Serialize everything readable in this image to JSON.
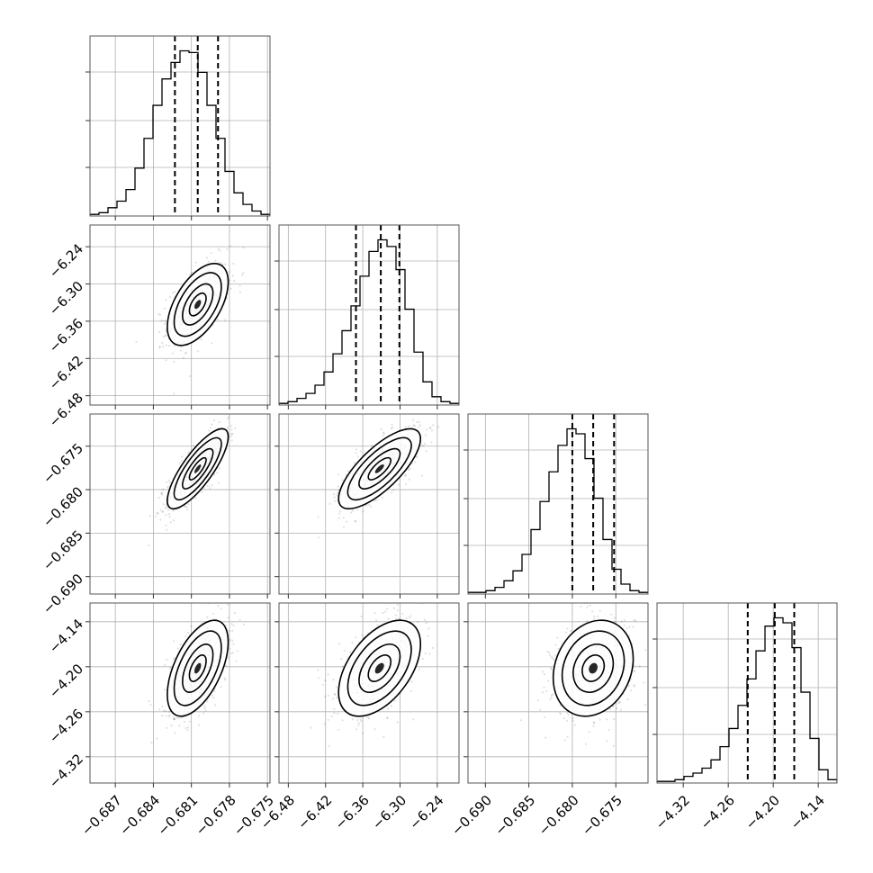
{
  "chart_data": {
    "type": "corner",
    "parameters": [
      {
        "ticks": [
          -0.687,
          -0.684,
          -0.681,
          -0.678,
          -0.675
        ],
        "tick_labels": [
          "−0.687",
          "−0.684",
          "−0.681",
          "−0.678",
          "−0.675"
        ],
        "range": [
          -0.689,
          -0.6748
        ],
        "quantiles": [
          -0.6823,
          -0.6805,
          -0.6789
        ],
        "mean": -0.6805,
        "sd": 0.0012
      },
      {
        "ticks": [
          -6.48,
          -6.42,
          -6.36,
          -6.3,
          -6.24
        ],
        "tick_labels": [
          "−6.48",
          "−6.42",
          "−6.36",
          "−6.30",
          "−6.24"
        ],
        "range": [
          -6.495,
          -6.205
        ],
        "quantiles": [
          -6.371,
          -6.331,
          -6.301
        ],
        "mean": -6.333,
        "sd": 0.033
      },
      {
        "ticks": [
          -0.69,
          -0.685,
          -0.68,
          -0.675
        ],
        "tick_labels": [
          "−0.690",
          "−0.685",
          "−0.680",
          "−0.675"
        ],
        "range": [
          -0.692,
          -0.6713
        ],
        "quantiles": [
          -0.68,
          -0.6776,
          -0.6752
        ],
        "mean": -0.6776,
        "sd": 0.0023
      },
      {
        "ticks": [
          -4.32,
          -4.26,
          -4.2,
          -4.14
        ],
        "tick_labels": [
          "−4.32",
          "−4.26",
          "−4.20",
          "−4.14"
        ],
        "range": [
          -4.355,
          -4.115
        ],
        "quantiles": [
          -4.234,
          -4.198,
          -4.172
        ],
        "mean": -4.202,
        "sd": 0.032
      }
    ],
    "histograms": [
      {
        "counts": [
          0.01,
          0.02,
          0.05,
          0.09,
          0.16,
          0.29,
          0.47,
          0.67,
          0.83,
          0.93,
          1.0,
          0.99,
          0.87,
          0.67,
          0.47,
          0.27,
          0.14,
          0.07,
          0.03,
          0.01
        ]
      },
      {
        "counts": [
          0.01,
          0.02,
          0.04,
          0.07,
          0.12,
          0.2,
          0.31,
          0.45,
          0.6,
          0.78,
          0.93,
          1.0,
          0.96,
          0.82,
          0.58,
          0.32,
          0.14,
          0.05,
          0.02,
          0.01
        ]
      },
      {
        "counts": [
          0.01,
          0.01,
          0.02,
          0.04,
          0.08,
          0.14,
          0.24,
          0.39,
          0.56,
          0.74,
          0.9,
          1.0,
          0.97,
          0.82,
          0.58,
          0.33,
          0.15,
          0.06,
          0.02,
          0.01
        ]
      },
      {
        "counts": [
          0.01,
          0.01,
          0.02,
          0.04,
          0.06,
          0.09,
          0.14,
          0.22,
          0.33,
          0.47,
          0.63,
          0.8,
          0.95,
          1.0,
          0.97,
          0.82,
          0.55,
          0.27,
          0.08,
          0.02
        ]
      }
    ],
    "correlations": [
      [
        1.0,
        0.55,
        0.8,
        0.55
      ],
      [
        0.55,
        1.0,
        0.75,
        0.5
      ],
      [
        0.8,
        0.75,
        1.0,
        0.2
      ],
      [
        0.55,
        0.5,
        0.2,
        1.0
      ]
    ],
    "grid": true,
    "colors": {
      "hist": "#000000",
      "points": "#000000",
      "contour_fill": "#000000"
    }
  }
}
